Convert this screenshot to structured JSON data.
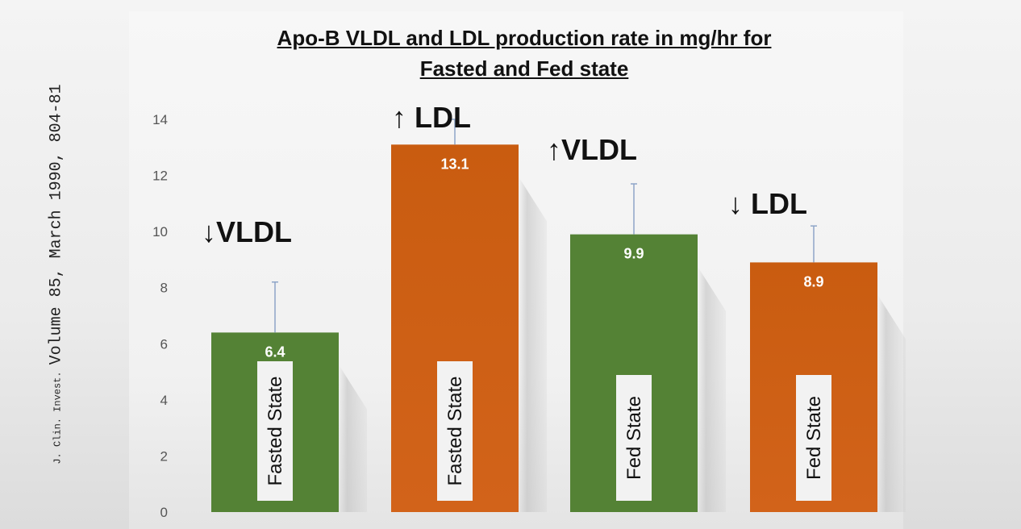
{
  "citation": {
    "journal": "J. Clin. Invest.",
    "volume": "Volume 85, March 1990, 804-81"
  },
  "chart_data": {
    "type": "bar",
    "title_line1": "Apo-B VLDL and LDL production rate in mg/hr for",
    "title_line2": "Fasted and Fed state",
    "xlabel": "",
    "ylabel": "",
    "ylim": [
      0,
      14
    ],
    "yticks": [
      0,
      2,
      4,
      6,
      8,
      10,
      12,
      14
    ],
    "grid": false,
    "bars": [
      {
        "category": "Fasted State",
        "value": 6.4,
        "label": "6.4",
        "error_top": 8.2,
        "color": "#548235",
        "annotation": "↓VLDL"
      },
      {
        "category": "Fasted State",
        "value": 13.1,
        "label": "13.1",
        "error_top": 14.0,
        "color": "#c55a11",
        "annotation": "↑ LDL"
      },
      {
        "category": "Fed State",
        "value": 9.9,
        "label": "9.9",
        "error_top": 11.7,
        "color": "#548235",
        "annotation": "↑VLDL"
      },
      {
        "category": "Fed State",
        "value": 8.9,
        "label": "8.9",
        "error_top": 10.2,
        "color": "#c55a11",
        "annotation": "↓ LDL"
      }
    ]
  }
}
